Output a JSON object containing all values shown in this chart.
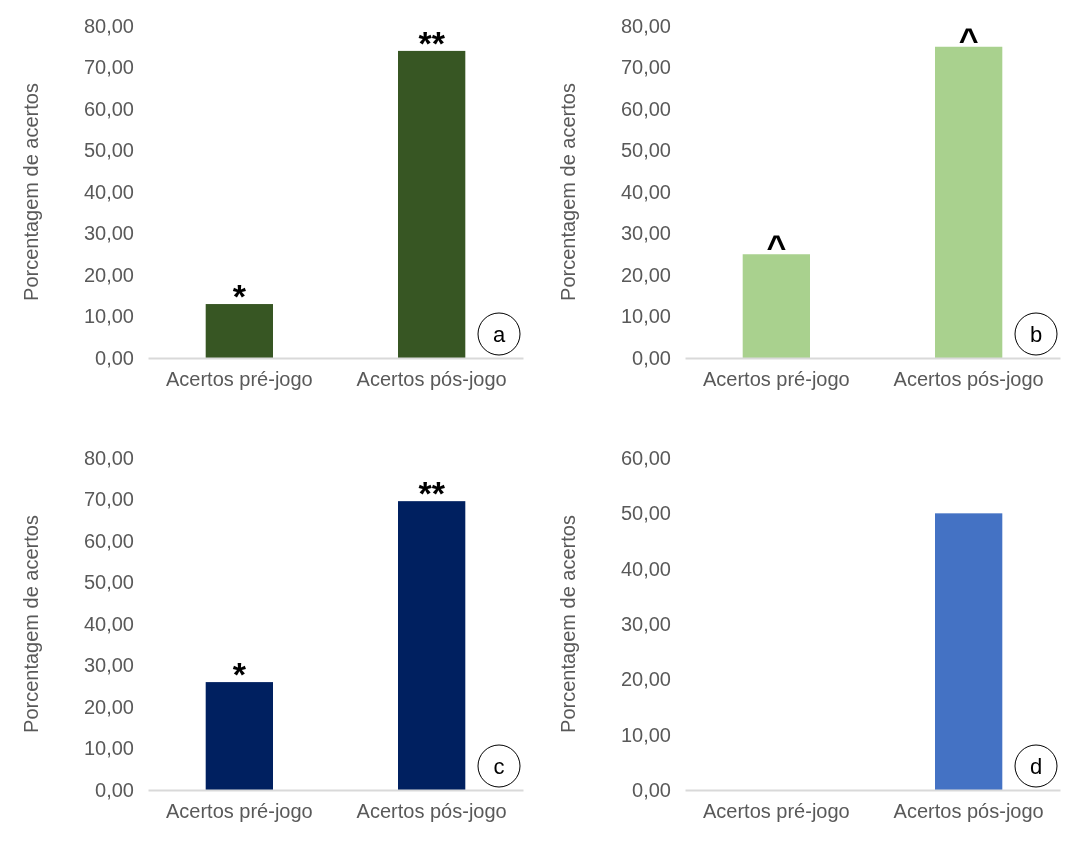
{
  "chart_data": [
    {
      "type": "bar",
      "ylabel": "Porcentagem de acertos",
      "categories": [
        "Acertos pré-jogo",
        "Acertos pós-jogo"
      ],
      "values": [
        13,
        74
      ],
      "color": "#375623",
      "ylim": [
        0,
        80
      ],
      "yticks": [
        {
          "value": 0,
          "label": "0,00"
        },
        {
          "value": 10,
          "label": "10,00"
        },
        {
          "value": 20,
          "label": "20,00"
        },
        {
          "value": 30,
          "label": "30,00"
        },
        {
          "value": 40,
          "label": "40,00"
        },
        {
          "value": 50,
          "label": "50,00"
        },
        {
          "value": 60,
          "label": "60,00"
        },
        {
          "value": 70,
          "label": "70,00"
        },
        {
          "value": 80,
          "label": "80,00"
        }
      ],
      "grid": false,
      "annotations": [
        {
          "text": "*",
          "x": "Acertos pré-jogo",
          "y": 13
        },
        {
          "text": "**",
          "x": "Acertos pós-jogo",
          "y": 74
        },
        "a"
      ]
    },
    {
      "type": "bar",
      "ylabel": "Porcentagem de acertos",
      "categories": [
        "Acertos pré-jogo",
        "Acertos pós-jogo"
      ],
      "values": [
        25,
        75
      ],
      "color": "#a9d18e",
      "ylim": [
        0,
        80
      ],
      "yticks": [
        {
          "value": 0,
          "label": "0,00"
        },
        {
          "value": 10,
          "label": "10,00"
        },
        {
          "value": 20,
          "label": "20,00"
        },
        {
          "value": 30,
          "label": "30,00"
        },
        {
          "value": 40,
          "label": "40,00"
        },
        {
          "value": 50,
          "label": "50,00"
        },
        {
          "value": 60,
          "label": "60,00"
        },
        {
          "value": 70,
          "label": "70,00"
        },
        {
          "value": 80,
          "label": "80,00"
        }
      ],
      "grid": false,
      "annotations": [
        {
          "text": "^",
          "x": "Acertos pré-jogo",
          "y": 25
        },
        {
          "text": "^",
          "x": "Acertos pós-jogo",
          "y": 75
        },
        "b"
      ]
    },
    {
      "type": "bar",
      "ylabel": "Porcentagem de acertos",
      "categories": [
        "Acertos pré-jogo",
        "Acertos pós-jogo"
      ],
      "values": [
        26,
        69.6
      ],
      "color": "#002060",
      "ylim": [
        0,
        80
      ],
      "yticks": [
        {
          "value": 0,
          "label": "0,00"
        },
        {
          "value": 10,
          "label": "10,00"
        },
        {
          "value": 20,
          "label": "20,00"
        },
        {
          "value": 30,
          "label": "30,00"
        },
        {
          "value": 40,
          "label": "40,00"
        },
        {
          "value": 50,
          "label": "50,00"
        },
        {
          "value": 60,
          "label": "60,00"
        },
        {
          "value": 70,
          "label": "70,00"
        },
        {
          "value": 80,
          "label": "80,00"
        }
      ],
      "grid": false,
      "annotations": [
        {
          "text": "*",
          "x": "Acertos pré-jogo",
          "y": 26
        },
        {
          "text": "**",
          "x": "Acertos pós-jogo",
          "y": 69.6
        },
        "c"
      ]
    },
    {
      "type": "bar",
      "ylabel": "Porcentagem de acertos",
      "categories": [
        "Acertos pré-jogo",
        "Acertos pós-jogo"
      ],
      "values": [
        0,
        50
      ],
      "color": "#4472c4",
      "ylim": [
        0,
        60
      ],
      "yticks": [
        {
          "value": 0,
          "label": "0,00"
        },
        {
          "value": 10,
          "label": "10,00"
        },
        {
          "value": 20,
          "label": "20,00"
        },
        {
          "value": 30,
          "label": "30,00"
        },
        {
          "value": 40,
          "label": "40,00"
        },
        {
          "value": 50,
          "label": "50,00"
        },
        {
          "value": 60,
          "label": "60,00"
        }
      ],
      "grid": false,
      "annotations": [
        "d"
      ]
    }
  ]
}
